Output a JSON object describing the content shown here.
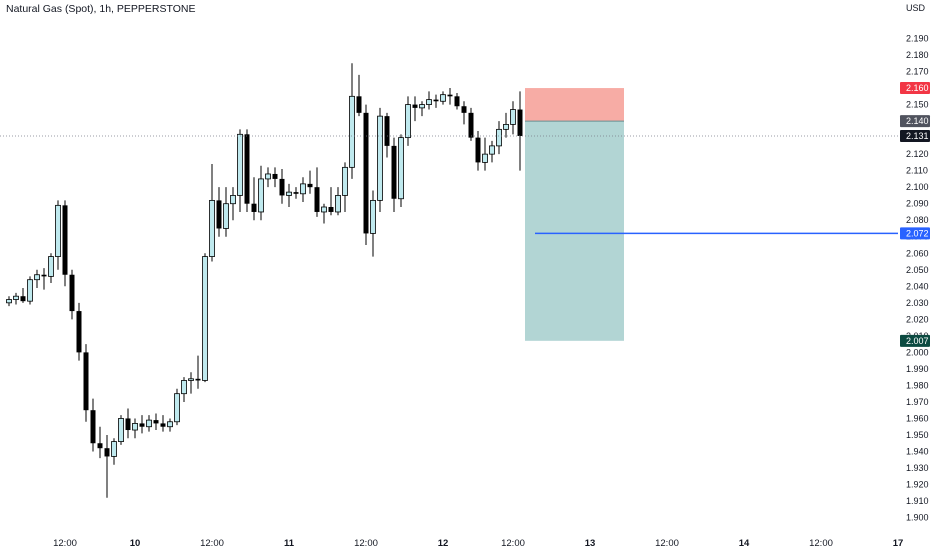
{
  "chart_data": {
    "type": "candlestick",
    "title": "Natural Gas (Spot), 1h, PEPPERSTONE",
    "currency": "USD",
    "y_ticks": [
      "2.190",
      "2.180",
      "2.170",
      "2.160",
      "2.150",
      "2.140",
      "2.130",
      "2.120",
      "2.110",
      "2.100",
      "2.090",
      "2.080",
      "2.070",
      "2.060",
      "2.050",
      "2.040",
      "2.030",
      "2.020",
      "2.010",
      "2.000",
      "1.990",
      "1.980",
      "1.970",
      "1.960",
      "1.950",
      "1.940",
      "1.930",
      "1.920",
      "1.910",
      "1.900"
    ],
    "ylim": [
      1.895,
      2.2
    ],
    "x_ticks": [
      {
        "label": "12:00",
        "bar": 8,
        "bold": false
      },
      {
        "label": "10",
        "bar": 18,
        "bold": true
      },
      {
        "label": "12:00",
        "bar": 29,
        "bold": false
      },
      {
        "label": "11",
        "bar": 40,
        "bold": true
      },
      {
        "label": "12:00",
        "bar": 51,
        "bold": false
      },
      {
        "label": "12",
        "bar": 62,
        "bold": true
      },
      {
        "label": "12:00",
        "bar": 72,
        "bold": false
      },
      {
        "label": "13",
        "bar": 83,
        "bold": true
      },
      {
        "label": "12:00",
        "bar": 94,
        "bold": false
      },
      {
        "label": "14",
        "bar": 105,
        "bold": true
      },
      {
        "label": "12:00",
        "bar": 116,
        "bold": false
      },
      {
        "label": "17",
        "bar": 127,
        "bold": true
      }
    ],
    "candles": [
      [
        2.03,
        2.034,
        2.028,
        2.032
      ],
      [
        2.032,
        2.036,
        2.029,
        2.034
      ],
      [
        2.034,
        2.039,
        2.03,
        2.031
      ],
      [
        2.031,
        2.046,
        2.029,
        2.044
      ],
      [
        2.044,
        2.05,
        2.039,
        2.047
      ],
      [
        2.047,
        2.051,
        2.038,
        2.046
      ],
      [
        2.046,
        2.06,
        2.042,
        2.058
      ],
      [
        2.058,
        2.092,
        2.05,
        2.089
      ],
      [
        2.089,
        2.092,
        2.04,
        2.047
      ],
      [
        2.047,
        2.05,
        2.02,
        2.025
      ],
      [
        2.025,
        2.03,
        1.995,
        2.0
      ],
      [
        2.0,
        2.005,
        1.958,
        1.965
      ],
      [
        1.965,
        1.972,
        1.94,
        1.945
      ],
      [
        1.945,
        1.955,
        1.936,
        1.942
      ],
      [
        1.942,
        1.95,
        1.912,
        1.937
      ],
      [
        1.937,
        1.948,
        1.932,
        1.946
      ],
      [
        1.946,
        1.962,
        1.944,
        1.96
      ],
      [
        1.96,
        1.966,
        1.948,
        1.953
      ],
      [
        1.953,
        1.96,
        1.948,
        1.957
      ],
      [
        1.957,
        1.962,
        1.951,
        1.955
      ],
      [
        1.955,
        1.962,
        1.952,
        1.959
      ],
      [
        1.959,
        1.963,
        1.953,
        1.957
      ],
      [
        1.957,
        1.962,
        1.952,
        1.955
      ],
      [
        1.955,
        1.96,
        1.952,
        1.958
      ],
      [
        1.958,
        1.978,
        1.956,
        1.975
      ],
      [
        1.975,
        1.985,
        1.97,
        1.983
      ],
      [
        1.983,
        1.988,
        1.975,
        1.984
      ],
      [
        1.984,
        1.998,
        1.978,
        1.983
      ],
      [
        1.983,
        2.06,
        1.982,
        2.058
      ],
      [
        2.058,
        2.114,
        2.055,
        2.092
      ],
      [
        2.092,
        2.1,
        2.07,
        2.075
      ],
      [
        2.075,
        2.1,
        2.07,
        2.09
      ],
      [
        2.09,
        2.1,
        2.08,
        2.095
      ],
      [
        2.095,
        2.135,
        2.085,
        2.132
      ],
      [
        2.132,
        2.135,
        2.085,
        2.09
      ],
      [
        2.09,
        2.106,
        2.08,
        2.085
      ],
      [
        2.085,
        2.113,
        2.08,
        2.105
      ],
      [
        2.105,
        2.112,
        2.1,
        2.108
      ],
      [
        2.108,
        2.112,
        2.1,
        2.105
      ],
      [
        2.105,
        2.111,
        2.09,
        2.095
      ],
      [
        2.095,
        2.102,
        2.088,
        2.097
      ],
      [
        2.097,
        2.1,
        2.093,
        2.096
      ],
      [
        2.096,
        2.106,
        2.091,
        2.102
      ],
      [
        2.102,
        2.11,
        2.096,
        2.1
      ],
      [
        2.1,
        2.112,
        2.082,
        2.085
      ],
      [
        2.085,
        2.09,
        2.078,
        2.088
      ],
      [
        2.088,
        2.1,
        2.083,
        2.085
      ],
      [
        2.085,
        2.1,
        2.083,
        2.095
      ],
      [
        2.095,
        2.115,
        2.085,
        2.112
      ],
      [
        2.112,
        2.175,
        2.105,
        2.155
      ],
      [
        2.155,
        2.168,
        2.143,
        2.145
      ],
      [
        2.145,
        2.15,
        2.065,
        2.072
      ],
      [
        2.072,
        2.098,
        2.058,
        2.092
      ],
      [
        2.092,
        2.148,
        2.085,
        2.143
      ],
      [
        2.143,
        2.145,
        2.118,
        2.125
      ],
      [
        2.125,
        2.13,
        2.085,
        2.093
      ],
      [
        2.093,
        2.132,
        2.088,
        2.13
      ],
      [
        2.13,
        2.155,
        2.125,
        2.15
      ],
      [
        2.15,
        2.155,
        2.14,
        2.148
      ],
      [
        2.148,
        2.152,
        2.143,
        2.15
      ],
      [
        2.15,
        2.158,
        2.147,
        2.153
      ],
      [
        2.153,
        2.156,
        2.148,
        2.152
      ],
      [
        2.152,
        2.158,
        2.15,
        2.156
      ],
      [
        2.156,
        2.16,
        2.15,
        2.155
      ],
      [
        2.155,
        2.157,
        2.147,
        2.149
      ],
      [
        2.149,
        2.152,
        2.138,
        2.145
      ],
      [
        2.145,
        2.148,
        2.128,
        2.13
      ],
      [
        2.13,
        2.134,
        2.11,
        2.115
      ],
      [
        2.115,
        2.13,
        2.11,
        2.12
      ],
      [
        2.12,
        2.128,
        2.115,
        2.125
      ],
      [
        2.125,
        2.14,
        2.12,
        2.135
      ],
      [
        2.135,
        2.145,
        2.13,
        2.138
      ],
      [
        2.138,
        2.152,
        2.132,
        2.147
      ],
      [
        2.147,
        2.158,
        2.11,
        2.131
      ]
    ],
    "position": {
      "type": "short",
      "entry": 2.14,
      "stop": 2.16,
      "target": 2.007,
      "start_bar": 74,
      "end_bar": 84
    },
    "horizontal_line": {
      "value": 2.072,
      "start_bar": 75
    },
    "current_price": 2.131,
    "price_labels": {
      "stop": "2.160",
      "entry": "2.140",
      "current": "2.131",
      "line": "2.072",
      "target": "2.007"
    },
    "colors": {
      "up_fill": "#bfe9ee",
      "up_border": "#000000",
      "down": "#000000",
      "stop_zone": "#f7aca5",
      "target_zone": "#b2d5d4",
      "stop_badge": "#f23645",
      "entry_badge": "#50535e",
      "current_badge": "#131722",
      "line": "#2962ff",
      "target_badge": "#0c4a41"
    }
  }
}
